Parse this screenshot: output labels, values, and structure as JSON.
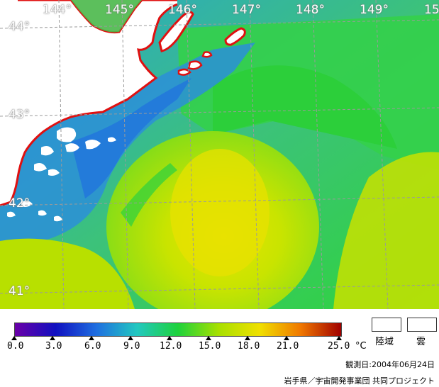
{
  "map": {
    "longitude_labels": [
      "144°",
      "145°",
      "146°",
      "147°",
      "148°",
      "149°",
      "15"
    ],
    "latitude_labels": [
      "44°",
      "43°",
      "42°",
      "41°"
    ]
  },
  "legend": {
    "unit": "°C",
    "ticks": [
      "0.0",
      "3.0",
      "6.0",
      "9.0",
      "12.0",
      "15.0",
      "18.0",
      "21.0",
      "25.0"
    ],
    "land_label": "陸域",
    "cloud_label": "雲",
    "observation_date": "観測日:2004年06月24日",
    "credit": "岩手県／宇宙開発事業団 共同プロジェクト"
  },
  "colors": {
    "land_outline": "#e01010",
    "grid": "#9a9a9a",
    "scale": [
      "#6a00a8",
      "#1010c0",
      "#1f6fe0",
      "#22c8c0",
      "#1ed23c",
      "#a8e000",
      "#f0e000",
      "#f07800",
      "#a00000"
    ]
  }
}
